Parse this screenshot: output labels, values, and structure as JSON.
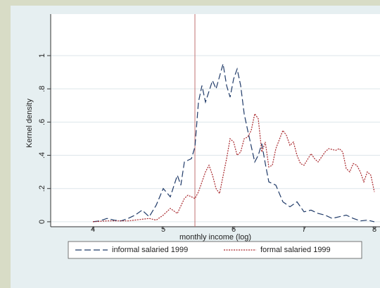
{
  "chart_data": {
    "type": "line",
    "y_label": "Kernel density",
    "x_label": "monthly income (log)",
    "xlim": [
      3.4,
      8.08
    ],
    "xticks": [
      4,
      5,
      6,
      7,
      8
    ],
    "ylim": [
      -0.03,
      1.25
    ],
    "yticks": [
      0,
      {
        "value": 0.2,
        "label": ".2"
      },
      {
        "value": 0.4,
        "label": ".4"
      },
      {
        "value": 0.6,
        "label": ".6"
      },
      {
        "value": 0.8,
        "label": ".8"
      },
      1
    ],
    "grid": true,
    "reference_line": 5.45,
    "reference_color": "#c07070",
    "series": [
      {
        "name": "informal salaried 1999",
        "color": "#1f3a68",
        "style": "dashed",
        "x": [
          4.0,
          4.1,
          4.2,
          4.3,
          4.4,
          4.5,
          4.6,
          4.7,
          4.8,
          4.9,
          5.0,
          5.1,
          5.2,
          5.25,
          5.3,
          5.4,
          5.45,
          5.5,
          5.55,
          5.6,
          5.7,
          5.75,
          5.85,
          5.9,
          5.95,
          6.0,
          6.05,
          6.1,
          6.15,
          6.2,
          6.3,
          6.35,
          6.4,
          6.45,
          6.5,
          6.6,
          6.7,
          6.8,
          6.9,
          7.0,
          7.1,
          7.2,
          7.3,
          7.4,
          7.5,
          7.6,
          7.7,
          7.8,
          7.9,
          8.0
        ],
        "values": [
          0,
          0.005,
          0.02,
          0.01,
          0.005,
          0.02,
          0.04,
          0.07,
          0.03,
          0.1,
          0.2,
          0.15,
          0.28,
          0.22,
          0.36,
          0.38,
          0.45,
          0.72,
          0.82,
          0.72,
          0.85,
          0.8,
          0.95,
          0.82,
          0.75,
          0.86,
          0.92,
          0.82,
          0.65,
          0.55,
          0.36,
          0.4,
          0.47,
          0.35,
          0.24,
          0.22,
          0.12,
          0.09,
          0.12,
          0.06,
          0.07,
          0.05,
          0.04,
          0.02,
          0.03,
          0.04,
          0.02,
          0.005,
          0.01,
          0
        ]
      },
      {
        "name": "formal salaried 1999",
        "color": "#a8262b",
        "style": "dotted",
        "x": [
          4.0,
          4.2,
          4.5,
          4.8,
          4.9,
          5.0,
          5.1,
          5.2,
          5.3,
          5.35,
          5.45,
          5.5,
          5.6,
          5.65,
          5.7,
          5.75,
          5.8,
          5.9,
          5.95,
          6.0,
          6.05,
          6.1,
          6.15,
          6.2,
          6.25,
          6.3,
          6.35,
          6.4,
          6.45,
          6.5,
          6.55,
          6.6,
          6.7,
          6.75,
          6.8,
          6.85,
          6.9,
          6.95,
          7.0,
          7.1,
          7.15,
          7.2,
          7.3,
          7.35,
          7.45,
          7.5,
          7.55,
          7.6,
          7.65,
          7.7,
          7.75,
          7.8,
          7.85,
          7.9,
          7.95,
          8.0
        ],
        "values": [
          0,
          0.005,
          0.005,
          0.02,
          0.01,
          0.04,
          0.08,
          0.05,
          0.14,
          0.16,
          0.14,
          0.18,
          0.3,
          0.34,
          0.28,
          0.2,
          0.17,
          0.38,
          0.5,
          0.48,
          0.4,
          0.42,
          0.5,
          0.51,
          0.55,
          0.65,
          0.62,
          0.42,
          0.48,
          0.33,
          0.34,
          0.44,
          0.55,
          0.52,
          0.46,
          0.48,
          0.4,
          0.35,
          0.34,
          0.41,
          0.38,
          0.36,
          0.42,
          0.44,
          0.43,
          0.44,
          0.42,
          0.32,
          0.3,
          0.35,
          0.34,
          0.3,
          0.24,
          0.3,
          0.28,
          0.18
        ]
      }
    ]
  }
}
